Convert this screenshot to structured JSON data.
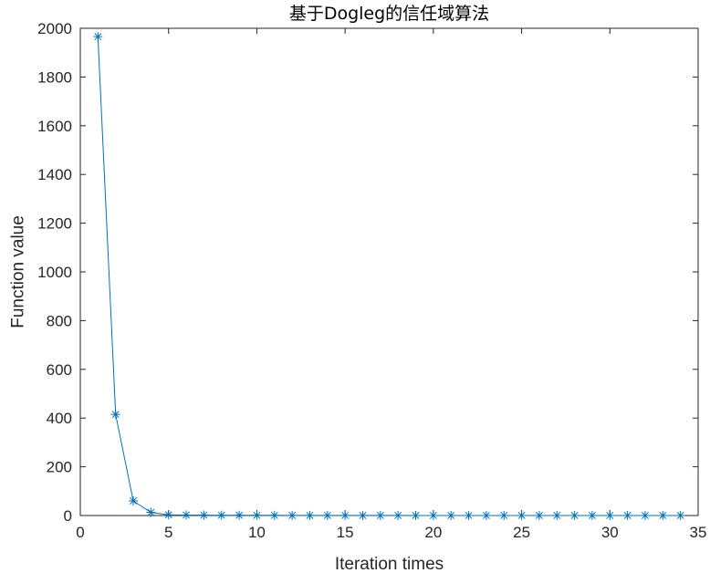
{
  "chart_data": {
    "type": "line",
    "title": "基于Dogleg的信任域算法",
    "xlabel": "Iteration times",
    "ylabel": "Function value",
    "xlim": [
      0,
      35
    ],
    "ylim": [
      0,
      2000
    ],
    "xticks": [
      0,
      5,
      10,
      15,
      20,
      25,
      30,
      35
    ],
    "yticks": [
      0,
      200,
      400,
      600,
      800,
      1000,
      1200,
      1400,
      1600,
      1800,
      2000
    ],
    "grid": false,
    "marker": "asterisk",
    "series": [
      {
        "color": "#0072bd",
        "x": [
          1,
          2,
          3,
          4,
          5,
          6,
          7,
          8,
          9,
          10,
          11,
          12,
          13,
          14,
          15,
          16,
          17,
          18,
          19,
          20,
          21,
          22,
          23,
          24,
          25,
          26,
          27,
          28,
          29,
          30,
          31,
          32,
          33,
          34
        ],
        "values": [
          1966,
          415,
          60,
          13,
          3,
          2,
          1.5,
          1.2,
          1,
          0.8,
          0.6,
          0.5,
          0.4,
          0.3,
          0.3,
          0.2,
          0.2,
          0.2,
          0.1,
          0.1,
          0.1,
          0.1,
          0.1,
          0.1,
          0.1,
          0.1,
          0.1,
          0.1,
          0.1,
          0.1,
          0.1,
          0.1,
          0.1,
          0.1
        ]
      }
    ]
  }
}
